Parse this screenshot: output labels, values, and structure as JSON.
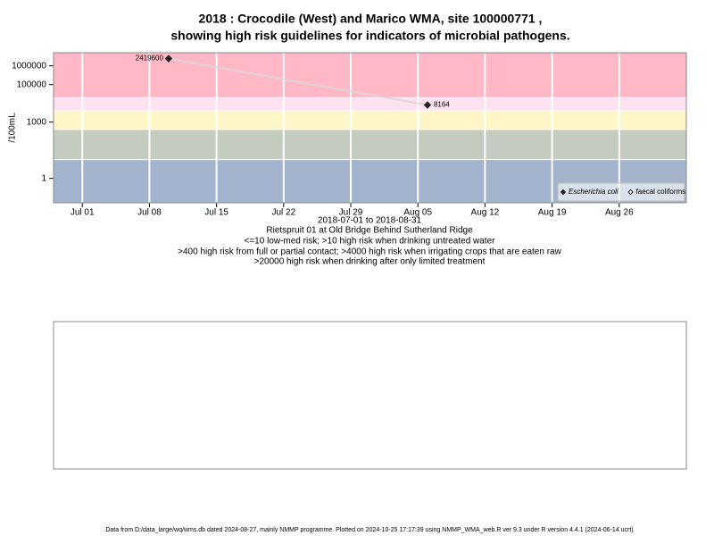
{
  "chart_data": {
    "type": "line",
    "title": [
      "2018 : Crocodile (West) and Marico WMA, site 100000771 ,",
      "showing high risk guidelines for indicators of microbial pathogens."
    ],
    "x_label": "2018-07-01 to 2018-08-31",
    "subtitle": "Rietspruit 01 at Old Bridge Behind Sutherland Ridge",
    "notes": [
      "<=10 low-med risk; >10 high risk when drinking untreated water",
      ">400 high risk from full or partial contact; >4000 high risk when irrigating crops that are eaten raw",
      ">20000 high risk when drinking after only limited treatment"
    ],
    "y_label": "/100mL",
    "log_y": true,
    "x": [
      "2018-07-10",
      "2018-08-06"
    ],
    "series": [
      {
        "name": "Escherichia coli",
        "color": "#222222",
        "marker": "filled-diamond",
        "values": [
          2419600,
          8164
        ]
      },
      {
        "name": "faecal coliforms",
        "color": "#222222",
        "marker": "open-diamond",
        "values": [
          null,
          null
        ]
      }
    ],
    "line_color": "#e3d3d8",
    "xlim": [
      "2018-06-28",
      "2018-09-02"
    ],
    "xticks": [
      {
        "value": "2018-07-01",
        "label": "Jul 01"
      },
      {
        "value": "2018-07-08",
        "label": "Jul 08"
      },
      {
        "value": "2018-07-15",
        "label": "Jul 15"
      },
      {
        "value": "2018-07-22",
        "label": "Jul 22"
      },
      {
        "value": "2018-07-29",
        "label": "Jul 29"
      },
      {
        "value": "2018-08-05",
        "label": "Aug 05"
      },
      {
        "value": "2018-08-12",
        "label": "Aug 12"
      },
      {
        "value": "2018-08-19",
        "label": "Aug 19"
      },
      {
        "value": "2018-08-26",
        "label": "Aug 26"
      }
    ],
    "ylim": [
      0.05,
      5000000
    ],
    "yticks": [
      1,
      1000,
      100000,
      1000000
    ],
    "band_thresholds": [
      10,
      400,
      4000,
      20000
    ],
    "band_colors": [
      "#a3b3cd",
      "#c4ccc0",
      "#fff6c8",
      "#fde2f2",
      "#ffb8c5"
    ],
    "grid": true,
    "legend_position": "bottom-right",
    "footer": "Data from D:/data_large/wq/wms.db dated 2024-08-27, mainly NMMP programme. Plotted on 2024-10-25 17:17:39 using NMMP_WMA_web.R ver 9.3 under R version 4.4.1 (2024-06-14 ucrt)"
  }
}
